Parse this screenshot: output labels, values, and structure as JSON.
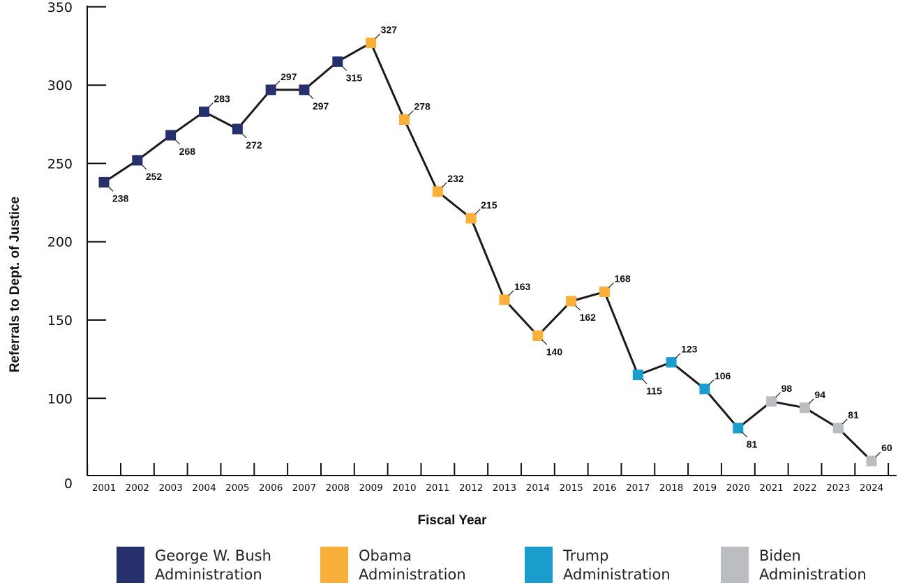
{
  "chart_data": {
    "type": "line",
    "xlabel": "Fiscal Year",
    "ylabel": "Referrals to Dept. of Justice",
    "ylim": [
      0,
      350
    ],
    "yticks": [
      0,
      100,
      150,
      200,
      250,
      300,
      350
    ],
    "grid": false,
    "x": [
      "2001",
      "2002",
      "2003",
      "2004",
      "2005",
      "2006",
      "2007",
      "2008",
      "2009",
      "2010",
      "2011",
      "2012",
      "2013",
      "2014",
      "2015",
      "2016",
      "2017",
      "2018",
      "2019",
      "2020",
      "2021",
      "2022",
      "2023",
      "2024"
    ],
    "values": [
      238,
      252,
      268,
      283,
      272,
      297,
      297,
      315,
      327,
      278,
      232,
      215,
      163,
      140,
      162,
      168,
      115,
      123,
      106,
      81,
      98,
      94,
      81,
      60
    ],
    "administration": [
      "bush",
      "bush",
      "bush",
      "bush",
      "bush",
      "bush",
      "bush",
      "bush",
      "obama",
      "obama",
      "obama",
      "obama",
      "obama",
      "obama",
      "obama",
      "obama",
      "trump",
      "trump",
      "trump",
      "trump",
      "biden",
      "biden",
      "biden",
      "biden"
    ],
    "label_position": [
      "below",
      "below",
      "below",
      "above",
      "below",
      "above",
      "below",
      "below",
      "above",
      "above",
      "above",
      "above",
      "above",
      "below",
      "below",
      "above",
      "below",
      "above",
      "above",
      "below",
      "above",
      "above",
      "above",
      "above"
    ],
    "colors": {
      "bush": "#26306c",
      "obama": "#f9b03b",
      "trump": "#1a9ccc",
      "biden": "#bcbdc0",
      "line": "#1a1a1a"
    },
    "legend": [
      {
        "key": "bush",
        "line1": "George W. Bush",
        "line2": "Administration"
      },
      {
        "key": "obama",
        "line1": "Obama",
        "line2": "Administration"
      },
      {
        "key": "trump",
        "line1": "Trump",
        "line2": "Administration"
      },
      {
        "key": "biden",
        "line1": "Biden",
        "line2": "Administration"
      }
    ],
    "legend_position": "bottom"
  }
}
